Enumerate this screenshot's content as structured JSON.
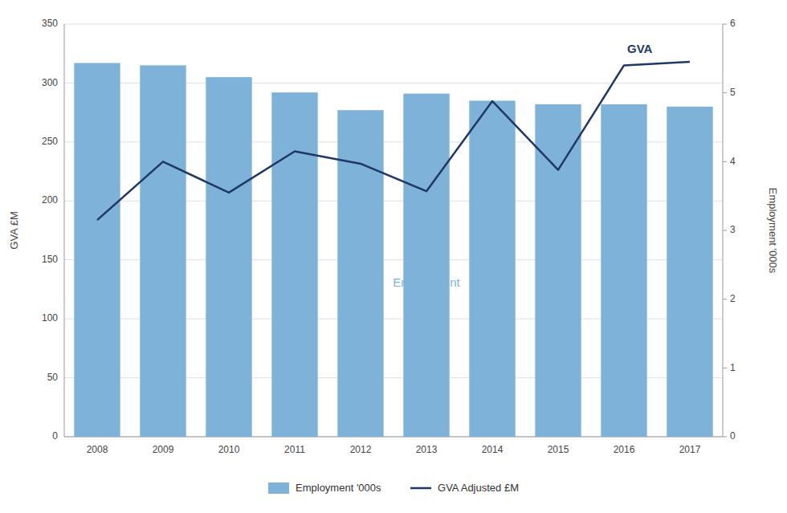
{
  "chart_data": {
    "type": "bar",
    "categories": [
      "2008",
      "2009",
      "2010",
      "2011",
      "2012",
      "2013",
      "2014",
      "2015",
      "2016",
      "2017"
    ],
    "series": [
      {
        "name": "Employment '000s",
        "type": "bar",
        "color": "#7EB2D8",
        "values": [
          317,
          315,
          305,
          292,
          277,
          291,
          285,
          282,
          282,
          280
        ]
      },
      {
        "name": "GVA Adjusted £M",
        "type": "line",
        "axis": "y2",
        "color": "#1F3864",
        "values": [
          3.15,
          4.0,
          3.55,
          4.15,
          3.97,
          3.57,
          4.88,
          3.88,
          5.4,
          5.45
        ]
      }
    ],
    "y_label": "GVA £M",
    "y2_label": "Employment '000s",
    "ylim": [
      0,
      350
    ],
    "yticks": [
      0,
      50,
      100,
      150,
      200,
      250,
      300,
      350
    ],
    "y2lim": [
      0,
      6
    ],
    "y2ticks": [
      0,
      1,
      2,
      3,
      4,
      5,
      6
    ],
    "grid": true,
    "legend": "bottom",
    "annotations": [
      {
        "text": "GVA",
        "x": "2016",
        "y": 5.55,
        "axis": "y2",
        "color": "#1F3864"
      },
      {
        "text": "Employment",
        "x": "2013",
        "y": 130,
        "color": "#7EB2D8"
      }
    ]
  }
}
